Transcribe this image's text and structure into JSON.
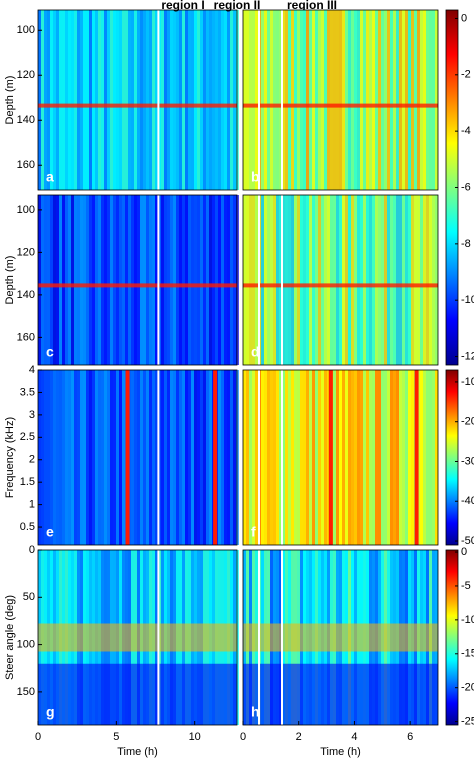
{
  "chart_data": [
    {
      "type": "heatmap",
      "panel": "a",
      "ylabel": "Depth (m)",
      "xlim": [
        0,
        12.7
      ],
      "ylim": [
        91,
        171
      ],
      "y_inverted": true,
      "yticks": [
        100,
        120,
        140,
        160
      ],
      "annotations": [
        "region I",
        "region II",
        "region III"
      ]
    },
    {
      "type": "heatmap",
      "panel": "b",
      "xlim": [
        0,
        7
      ],
      "ylim": [
        91,
        171
      ],
      "y_inverted": true
    },
    {
      "type": "heatmap",
      "panel": "c",
      "ylabel": "Depth (m)",
      "xlim": [
        0,
        12.7
      ],
      "ylim": [
        93,
        173
      ],
      "y_inverted": true,
      "yticks": [
        100,
        120,
        140,
        160
      ]
    },
    {
      "type": "heatmap",
      "panel": "d",
      "xlim": [
        0,
        7
      ],
      "ylim": [
        93,
        173
      ],
      "y_inverted": true
    },
    {
      "type": "heatmap",
      "panel": "e",
      "ylabel": "Frequency (kHz)",
      "xlim": [
        0,
        12.7
      ],
      "ylim": [
        0.1,
        4
      ],
      "yticks": [
        0.5,
        1,
        1.5,
        2,
        2.5,
        3,
        3.5,
        4
      ]
    },
    {
      "type": "heatmap",
      "panel": "f",
      "xlim": [
        0,
        7
      ],
      "ylim": [
        0.1,
        4
      ]
    },
    {
      "type": "heatmap",
      "panel": "g",
      "ylabel": "Steer angle (deg)",
      "xlabel": "Time (h)",
      "xlim": [
        0,
        12.7
      ],
      "xticks": [
        0,
        5,
        10
      ],
      "ylim": [
        0,
        185
      ],
      "y_inverted": true,
      "yticks": [
        0,
        50,
        100,
        150
      ]
    },
    {
      "type": "heatmap",
      "panel": "h",
      "xlabel": "Time (h)",
      "xlim": [
        0,
        7
      ],
      "xticks": [
        0,
        2,
        4,
        6
      ],
      "ylim": [
        0,
        185
      ],
      "y_inverted": true
    },
    {
      "type": "colorbar",
      "clim": [
        -12.3,
        0.3
      ],
      "cticks": [
        0,
        -2,
        -4,
        -6,
        -8,
        -10,
        -12
      ]
    },
    {
      "type": "colorbar",
      "clim": [
        -51,
        -7
      ],
      "cticks": [
        -10,
        -20,
        -30,
        -40,
        -50
      ]
    },
    {
      "type": "colorbar",
      "clim": [
        -25.5,
        0.3
      ],
      "cticks": [
        0,
        -5,
        -10,
        -15,
        -20,
        -25
      ]
    }
  ]
}
